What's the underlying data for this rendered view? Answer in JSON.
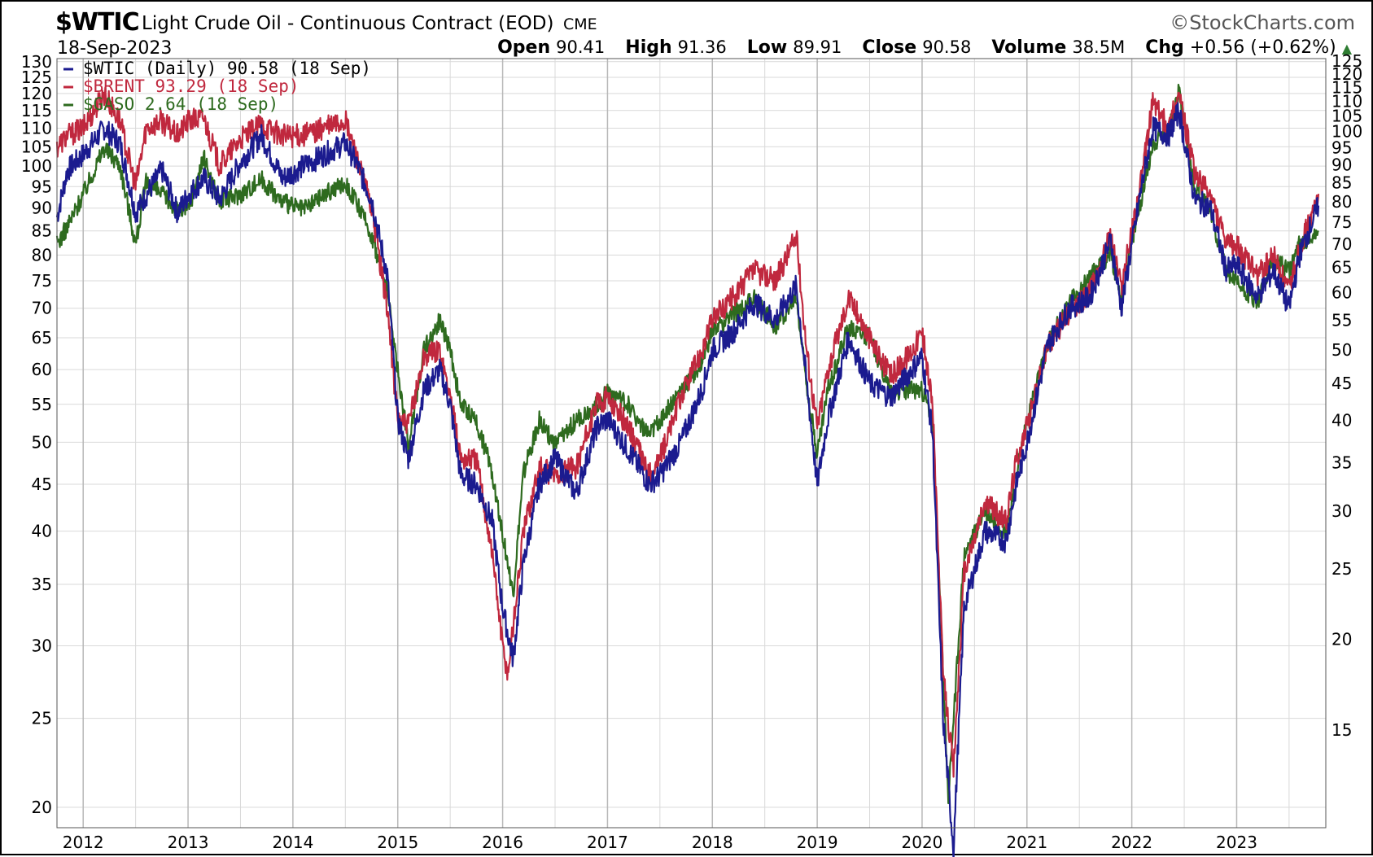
{
  "header": {
    "symbol": "$WTIC",
    "description": "Light Crude Oil - Continuous Contract (EOD)",
    "exchange": "CME",
    "brand": "©StockCharts.com",
    "date": "18-Sep-2023",
    "open_label": "Open",
    "open": "90.41",
    "high_label": "High",
    "high": "91.36",
    "low_label": "Low",
    "low": "89.91",
    "close_label": "Close",
    "close": "90.58",
    "volume_label": "Volume",
    "volume": "38.5M",
    "chg_label": "Chg",
    "chg": "+0.56 (+0.62%)",
    "chg_icon": "up-triangle-icon"
  },
  "colors": {
    "wtic": "#1b1b8f",
    "brent": "#c0283e",
    "gaso": "#2e6b1f",
    "grid": "#d9d9d9"
  },
  "chart_data": {
    "type": "line",
    "log_scale": true,
    "grid": true,
    "legend_placement": "top-left",
    "x_tick_labels": [
      "2012",
      "2013",
      "2014",
      "2015",
      "2016",
      "2017",
      "2018",
      "2019",
      "2020",
      "2021",
      "2022",
      "2023"
    ],
    "x_range": [
      2011.75,
      2023.85
    ],
    "left_axis": {
      "ticks": [
        20,
        25,
        30,
        35,
        40,
        45,
        50,
        55,
        60,
        65,
        70,
        75,
        80,
        85,
        90,
        95,
        100,
        105,
        110,
        115,
        120,
        125,
        130
      ],
      "range": [
        19,
        131
      ]
    },
    "right_axis": {
      "ticks": [
        15,
        20,
        25,
        30,
        35,
        40,
        45,
        50,
        55,
        60,
        65,
        70,
        75,
        80,
        85,
        90,
        95,
        100,
        105,
        110,
        115,
        120,
        125
      ],
      "range": [
        11.0,
        126.0
      ]
    },
    "legend": [
      "$WTIC (Daily) 90.58 (18 Sep)",
      "$BRENT 93.29 (18 Sep)",
      "$GASO 2.64 (18 Sep)"
    ],
    "series": [
      {
        "name": "$WTIC",
        "axis": "left",
        "color": "#1b1b8f",
        "points": [
          [
            2011.75,
            88
          ],
          [
            2011.85,
            99
          ],
          [
            2012.0,
            103
          ],
          [
            2012.2,
            110
          ],
          [
            2012.35,
            106
          ],
          [
            2012.5,
            89
          ],
          [
            2012.6,
            93
          ],
          [
            2012.75,
            99
          ],
          [
            2012.9,
            89
          ],
          [
            2013.0,
            93
          ],
          [
            2013.15,
            97
          ],
          [
            2013.3,
            92
          ],
          [
            2013.5,
            101
          ],
          [
            2013.7,
            108
          ],
          [
            2013.9,
            97
          ],
          [
            2014.1,
            100
          ],
          [
            2014.3,
            103
          ],
          [
            2014.5,
            106
          ],
          [
            2014.6,
            101
          ],
          [
            2014.75,
            92
          ],
          [
            2014.9,
            76
          ],
          [
            2015.0,
            53
          ],
          [
            2015.1,
            48
          ],
          [
            2015.25,
            57
          ],
          [
            2015.4,
            60
          ],
          [
            2015.5,
            55
          ],
          [
            2015.6,
            46
          ],
          [
            2015.75,
            45
          ],
          [
            2015.9,
            41
          ],
          [
            2016.0,
            33
          ],
          [
            2016.1,
            29
          ],
          [
            2016.2,
            37
          ],
          [
            2016.35,
            45
          ],
          [
            2016.5,
            48
          ],
          [
            2016.7,
            44
          ],
          [
            2016.9,
            52
          ],
          [
            2017.0,
            53
          ],
          [
            2017.2,
            49
          ],
          [
            2017.4,
            45
          ],
          [
            2017.5,
            46
          ],
          [
            2017.7,
            50
          ],
          [
            2017.9,
            57
          ],
          [
            2018.0,
            63
          ],
          [
            2018.2,
            66
          ],
          [
            2018.4,
            71
          ],
          [
            2018.6,
            68
          ],
          [
            2018.8,
            74
          ],
          [
            2018.9,
            58
          ],
          [
            2019.0,
            45
          ],
          [
            2019.1,
            53
          ],
          [
            2019.3,
            65
          ],
          [
            2019.5,
            58
          ],
          [
            2019.7,
            56
          ],
          [
            2019.9,
            60
          ],
          [
            2020.0,
            62
          ],
          [
            2020.1,
            51
          ],
          [
            2020.2,
            25
          ],
          [
            2020.3,
            18
          ],
          [
            2020.4,
            33
          ],
          [
            2020.6,
            40
          ],
          [
            2020.8,
            39
          ],
          [
            2020.9,
            45
          ],
          [
            2021.0,
            50
          ],
          [
            2021.2,
            64
          ],
          [
            2021.4,
            70
          ],
          [
            2021.6,
            72
          ],
          [
            2021.8,
            83
          ],
          [
            2021.9,
            70
          ],
          [
            2022.0,
            82
          ],
          [
            2022.1,
            96
          ],
          [
            2022.2,
            110
          ],
          [
            2022.35,
            108
          ],
          [
            2022.45,
            115
          ],
          [
            2022.6,
            92
          ],
          [
            2022.75,
            90
          ],
          [
            2022.9,
            77
          ],
          [
            2023.0,
            78
          ],
          [
            2023.2,
            72
          ],
          [
            2023.35,
            77
          ],
          [
            2023.5,
            70
          ],
          [
            2023.6,
            80
          ],
          [
            2023.72,
            87
          ],
          [
            2023.78,
            90.58
          ]
        ]
      },
      {
        "name": "$BRENT",
        "axis": "left",
        "color": "#c0283e",
        "points": [
          [
            2011.75,
            105
          ],
          [
            2011.85,
            108
          ],
          [
            2012.0,
            110
          ],
          [
            2012.2,
            120
          ],
          [
            2012.35,
            112
          ],
          [
            2012.5,
            95
          ],
          [
            2012.6,
            110
          ],
          [
            2012.75,
            112
          ],
          [
            2012.9,
            108
          ],
          [
            2013.0,
            112
          ],
          [
            2013.15,
            113
          ],
          [
            2013.3,
            100
          ],
          [
            2013.5,
            107
          ],
          [
            2013.7,
            111
          ],
          [
            2013.9,
            108
          ],
          [
            2014.1,
            108
          ],
          [
            2014.3,
            110
          ],
          [
            2014.5,
            112
          ],
          [
            2014.6,
            103
          ],
          [
            2014.75,
            90
          ],
          [
            2014.9,
            70
          ],
          [
            2015.0,
            53
          ],
          [
            2015.1,
            52
          ],
          [
            2015.25,
            62
          ],
          [
            2015.4,
            63
          ],
          [
            2015.5,
            56
          ],
          [
            2015.6,
            48
          ],
          [
            2015.75,
            48
          ],
          [
            2015.9,
            38
          ],
          [
            2016.0,
            30
          ],
          [
            2016.05,
            28
          ],
          [
            2016.2,
            40
          ],
          [
            2016.35,
            47
          ],
          [
            2016.5,
            46
          ],
          [
            2016.7,
            47
          ],
          [
            2016.9,
            55
          ],
          [
            2017.0,
            56
          ],
          [
            2017.2,
            52
          ],
          [
            2017.4,
            46
          ],
          [
            2017.5,
            48
          ],
          [
            2017.7,
            56
          ],
          [
            2017.9,
            63
          ],
          [
            2018.0,
            68
          ],
          [
            2018.2,
            72
          ],
          [
            2018.4,
            77
          ],
          [
            2018.6,
            75
          ],
          [
            2018.8,
            84
          ],
          [
            2018.9,
            63
          ],
          [
            2019.0,
            52
          ],
          [
            2019.1,
            60
          ],
          [
            2019.3,
            72
          ],
          [
            2019.5,
            65
          ],
          [
            2019.7,
            59
          ],
          [
            2019.9,
            63
          ],
          [
            2020.0,
            66
          ],
          [
            2020.1,
            55
          ],
          [
            2020.2,
            28
          ],
          [
            2020.3,
            22
          ],
          [
            2020.4,
            36
          ],
          [
            2020.6,
            43
          ],
          [
            2020.8,
            41
          ],
          [
            2020.9,
            48
          ],
          [
            2021.0,
            52
          ],
          [
            2021.2,
            64
          ],
          [
            2021.4,
            69
          ],
          [
            2021.6,
            73
          ],
          [
            2021.8,
            84
          ],
          [
            2021.9,
            74
          ],
          [
            2022.0,
            85
          ],
          [
            2022.1,
            98
          ],
          [
            2022.2,
            118
          ],
          [
            2022.35,
            110
          ],
          [
            2022.45,
            120
          ],
          [
            2022.6,
            98
          ],
          [
            2022.75,
            93
          ],
          [
            2022.9,
            82
          ],
          [
            2023.0,
            82
          ],
          [
            2023.2,
            76
          ],
          [
            2023.35,
            80
          ],
          [
            2023.5,
            73
          ],
          [
            2023.6,
            82
          ],
          [
            2023.72,
            88
          ],
          [
            2023.78,
            93.29
          ]
        ]
      },
      {
        "name": "$GASO",
        "axis": "right",
        "color": "#2e6b1f",
        "points": [
          [
            2011.75,
            70
          ],
          [
            2011.85,
            74
          ],
          [
            2012.0,
            82
          ],
          [
            2012.2,
            95
          ],
          [
            2012.35,
            90
          ],
          [
            2012.5,
            70
          ],
          [
            2012.6,
            85
          ],
          [
            2012.75,
            82
          ],
          [
            2012.9,
            78
          ],
          [
            2013.0,
            78
          ],
          [
            2013.15,
            92
          ],
          [
            2013.3,
            80
          ],
          [
            2013.5,
            82
          ],
          [
            2013.7,
            86
          ],
          [
            2013.9,
            80
          ],
          [
            2014.1,
            78
          ],
          [
            2014.3,
            82
          ],
          [
            2014.5,
            85
          ],
          [
            2014.6,
            80
          ],
          [
            2014.75,
            72
          ],
          [
            2014.9,
            60
          ],
          [
            2015.0,
            47
          ],
          [
            2015.1,
            37
          ],
          [
            2015.25,
            50
          ],
          [
            2015.4,
            55
          ],
          [
            2015.5,
            50
          ],
          [
            2015.6,
            42
          ],
          [
            2015.75,
            40
          ],
          [
            2015.9,
            34
          ],
          [
            2016.0,
            28
          ],
          [
            2016.1,
            23
          ],
          [
            2016.2,
            34
          ],
          [
            2016.35,
            40
          ],
          [
            2016.5,
            37
          ],
          [
            2016.7,
            40
          ],
          [
            2016.9,
            42
          ],
          [
            2017.0,
            44
          ],
          [
            2017.2,
            42
          ],
          [
            2017.4,
            38
          ],
          [
            2017.5,
            40
          ],
          [
            2017.7,
            44
          ],
          [
            2017.9,
            48
          ],
          [
            2018.0,
            53
          ],
          [
            2018.2,
            56
          ],
          [
            2018.4,
            59
          ],
          [
            2018.6,
            54
          ],
          [
            2018.8,
            59
          ],
          [
            2018.9,
            45
          ],
          [
            2019.0,
            36
          ],
          [
            2019.1,
            44
          ],
          [
            2019.3,
            54
          ],
          [
            2019.5,
            52
          ],
          [
            2019.7,
            44
          ],
          [
            2019.9,
            44
          ],
          [
            2020.0,
            44
          ],
          [
            2020.1,
            40
          ],
          [
            2020.2,
            18
          ],
          [
            2020.25,
            12
          ],
          [
            2020.4,
            26
          ],
          [
            2020.6,
            30
          ],
          [
            2020.8,
            28
          ],
          [
            2020.9,
            34
          ],
          [
            2021.0,
            40
          ],
          [
            2021.2,
            51
          ],
          [
            2021.4,
            58
          ],
          [
            2021.6,
            63
          ],
          [
            2021.8,
            68
          ],
          [
            2021.9,
            59
          ],
          [
            2022.0,
            70
          ],
          [
            2022.1,
            82
          ],
          [
            2022.2,
            96
          ],
          [
            2022.35,
            100
          ],
          [
            2022.45,
            114
          ],
          [
            2022.6,
            84
          ],
          [
            2022.75,
            78
          ],
          [
            2022.9,
            64
          ],
          [
            2023.0,
            62
          ],
          [
            2023.2,
            58
          ],
          [
            2023.35,
            67
          ],
          [
            2023.5,
            64
          ],
          [
            2023.6,
            70
          ],
          [
            2023.72,
            72
          ],
          [
            2023.78,
            73
          ]
        ]
      }
    ]
  }
}
